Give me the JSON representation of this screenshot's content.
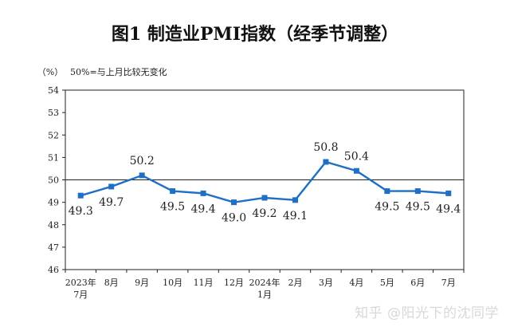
{
  "chart_data": {
    "type": "line",
    "title": "图1  制造业PMI指数（经季节调整）",
    "unit_label": "（%）",
    "reference_note": "50%=与上月比较无变化",
    "reference_value": 50,
    "ylim": [
      46,
      54
    ],
    "yticks": [
      46,
      47,
      48,
      49,
      50,
      51,
      52,
      53,
      54
    ],
    "categories": [
      [
        "2023年",
        "7月"
      ],
      [
        "8月"
      ],
      [
        "9月"
      ],
      [
        "10月"
      ],
      [
        "11月"
      ],
      [
        "12月"
      ],
      [
        "2024年",
        "1月"
      ],
      [
        "2月"
      ],
      [
        "3月"
      ],
      [
        "4月"
      ],
      [
        "5月"
      ],
      [
        "6月"
      ],
      [
        "7月"
      ]
    ],
    "values": [
      49.3,
      49.7,
      50.2,
      49.5,
      49.4,
      49.0,
      49.2,
      49.1,
      50.8,
      50.4,
      49.5,
      49.5,
      49.4
    ],
    "data_labels": [
      "49.3",
      "49.7",
      "50.2",
      "49.5",
      "49.4",
      "49.0",
      "49.2",
      "49.1",
      "50.8",
      "50.4",
      "49.5",
      "49.5",
      "49.4"
    ],
    "line_color": "#1f6fc5",
    "grid": false
  },
  "watermark": "知乎 @阳光下的沈同学"
}
